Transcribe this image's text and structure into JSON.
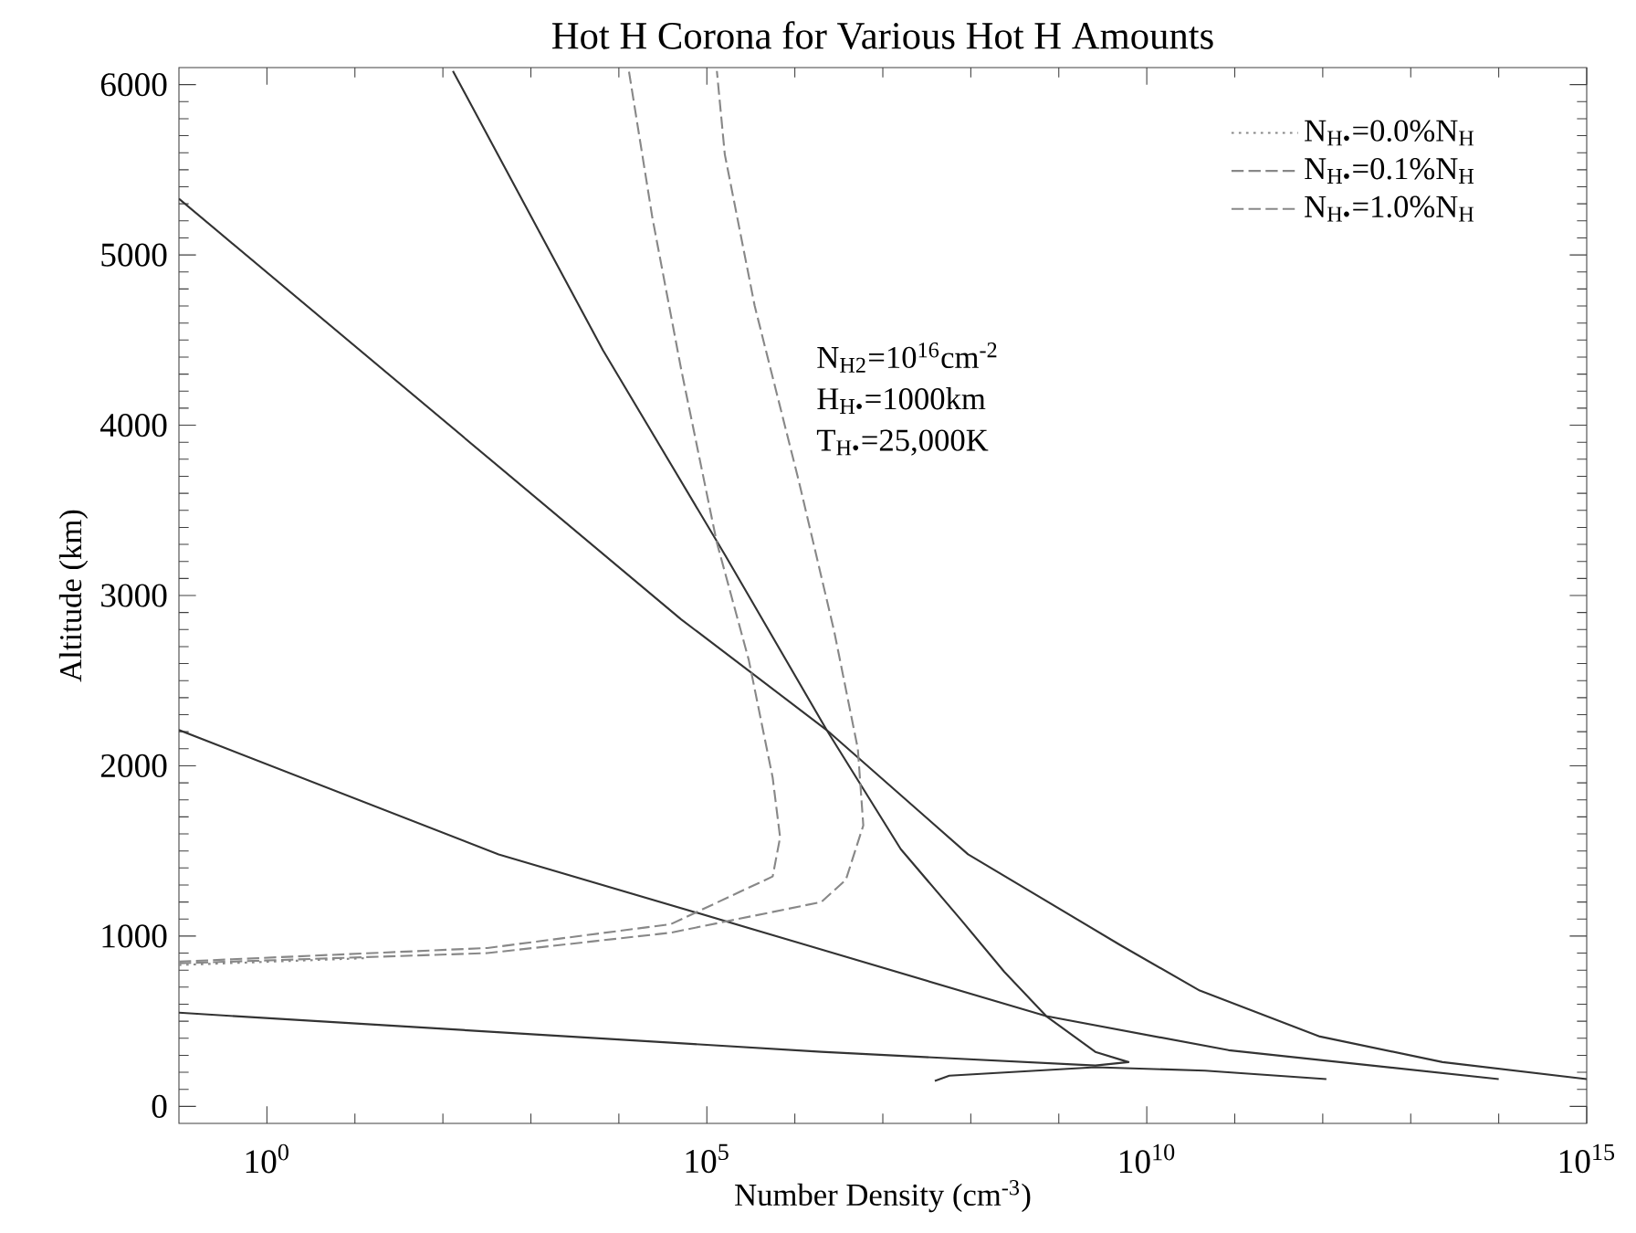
{
  "chart_data": {
    "type": "line",
    "title": "Hot H Corona for Various Hot H Amounts",
    "xlabel": "Number Density (cm$^{-3}$)",
    "ylabel": "Altitude (km)",
    "log": "x",
    "xlim": [
      0.1,
      1000000000000000.0
    ],
    "ylim": [
      -100,
      6100
    ],
    "xticks": [
      {
        "value": 1,
        "label": "10$^{0}$"
      },
      {
        "value": 10,
        "label": null
      },
      {
        "value": 100,
        "label": null
      },
      {
        "value": 1000,
        "label": null
      },
      {
        "value": 10000,
        "label": null
      },
      {
        "value": 100000,
        "label": "10$^{5}$"
      },
      {
        "value": 1000000.0,
        "label": null
      },
      {
        "value": 10000000.0,
        "label": null
      },
      {
        "value": 100000000.0,
        "label": null
      },
      {
        "value": 1000000000.0,
        "label": null
      },
      {
        "value": 10000000000.0,
        "label": "10$^{10}$"
      },
      {
        "value": 100000000000.0,
        "label": null
      },
      {
        "value": 1000000000000.0,
        "label": null
      },
      {
        "value": 10000000000000.0,
        "label": null
      },
      {
        "value": 100000000000000.0,
        "label": null
      },
      {
        "value": 1000000000000000.0,
        "label": "10$^{15}$"
      }
    ],
    "yticks": [
      0,
      1000,
      2000,
      3000,
      4000,
      5000,
      6000
    ],
    "grid": false,
    "marker": "none",
    "line_style": "solid",
    "legend": "top right",
    "annotations": [
      "N$_{H2}$=10$^{16}$cm$^{-2}$",
      "H$_{H•}$=1000km",
      "T$_{H•}$=25,000K"
    ],
    "series": [
      {
        "color": "#333333",
        "x": [
          130,
          6600,
          160000,
          2300000,
          16000000,
          79000000,
          240000000,
          720000000,
          2600000000,
          6200000000,
          2600000000,
          2000000,
          0.1
        ],
        "values": [
          6080,
          4440,
          3240,
          2210,
          1510,
          1090,
          790,
          530,
          320,
          260,
          240,
          320,
          550
        ]
      },
      {
        "color": "#333333",
        "x": [
          0.1,
          51000,
          2300000,
          93000000,
          4900000000,
          40000000000,
          930000000000,
          23000000000000,
          1000000000000000.0
        ],
        "values": [
          5330,
          2860,
          2210,
          1480,
          950,
          680,
          410,
          260,
          160
        ]
      },
      {
        "color": "#333333",
        "x": [
          0.1,
          430,
          1300000,
          720000000,
          85000000000,
          100000000000000.0
        ],
        "values": [
          2210,
          1480,
          950,
          530,
          330,
          160
        ]
      },
      {
        "color": "#333333",
        "x": [
          39000000,
          57000000,
          2600000000,
          46000000000,
          1100000000000
        ],
        "values": [
          150,
          180,
          230,
          210,
          160
        ]
      },
      {
        "name": "N$_{H•}$=0.0%N$_{H}$",
        "color": "#888888",
        "line_style": "dotted",
        "x": [
          0.1,
          13
        ],
        "values": [
          830,
          870
        ]
      },
      {
        "name": "N$_{H•}$=0.1%N$_{H}$",
        "color": "#888888",
        "line_style": "dashed",
        "x": [
          0.1,
          320,
          39000,
          560000,
          680000,
          560000,
          300000,
          130000,
          51000,
          24000,
          13000
        ],
        "values": [
          850,
          930,
          1070,
          1350,
          1580,
          1930,
          2620,
          3310,
          4330,
          5220,
          6080
        ]
      },
      {
        "name": "N$_{H•}$=1.0%N$_{H}$",
        "color": "#888888",
        "line_style": "dashed",
        "x": [
          0.1,
          320,
          39000,
          2000000,
          3800000,
          6000000,
          5200000,
          2800000,
          1100000,
          350000,
          160000,
          130000
        ],
        "values": [
          840,
          900,
          1020,
          1200,
          1330,
          1650,
          2100,
          2790,
          3680,
          4700,
          5590,
          6080
        ]
      }
    ]
  }
}
